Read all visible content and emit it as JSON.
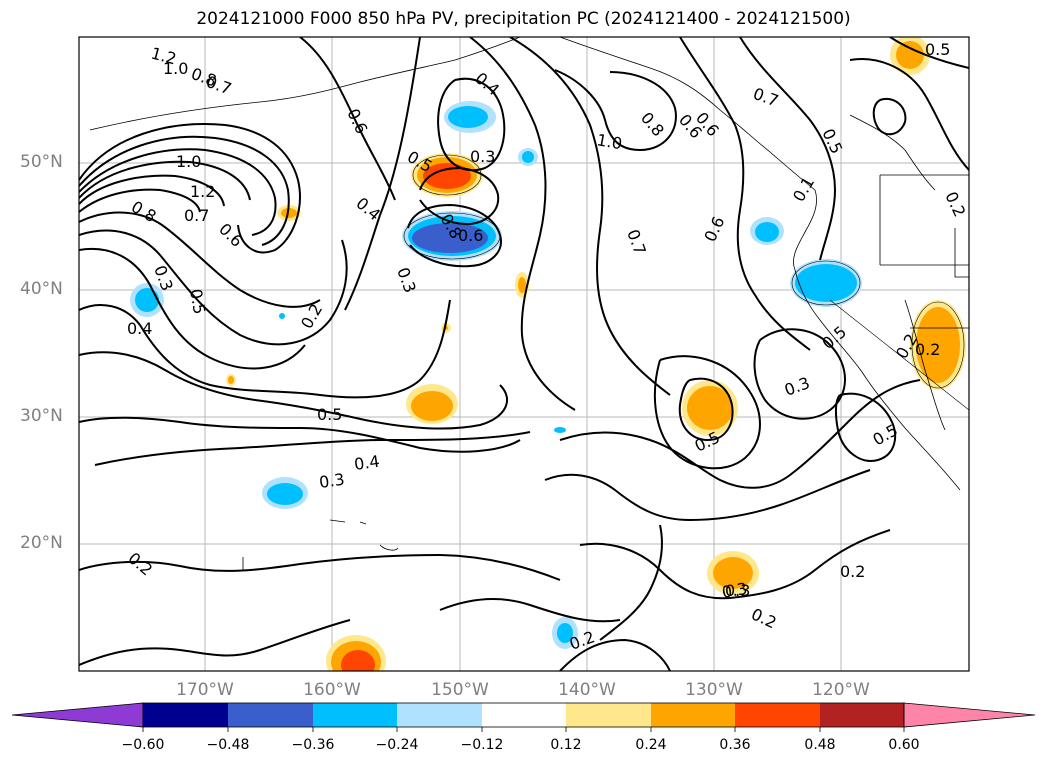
{
  "title": "2024121000 F000 850 hPa PV, precipitation PC (2024121400 - 2024121500)",
  "lat_labels": [
    "50°N",
    "40°N",
    "30°N",
    "20°N"
  ],
  "lon_labels": [
    "170°W",
    "160°W",
    "150°W",
    "140°W",
    "130°W",
    "120°W"
  ],
  "colorbar": {
    "ticks": [
      "−0.60",
      "−0.48",
      "−0.36",
      "−0.24",
      "−0.12",
      "0.12",
      "0.24",
      "0.36",
      "0.48",
      "0.60"
    ],
    "colors": [
      "#8e3bd6",
      "#000090",
      "#3a5fcd",
      "#00bfff",
      "#b0e2ff",
      "#ffffff",
      "#ffe88c",
      "#ffa500",
      "#ff4500",
      "#b22222",
      "#ff85a8"
    ]
  },
  "contour_labels": [
    "1.2",
    "1.0",
    "0.8",
    "0.7",
    "0.6",
    "0.4",
    "0.6",
    "0.5",
    "0.3",
    "1.0",
    "0.8",
    "0.6",
    "0.7",
    "0.5",
    "1.0",
    "1.2",
    "0.8",
    "0.7",
    "0.6",
    "0.4",
    "0.8",
    "0.6",
    "0.7",
    "0.6",
    "0.3",
    "0.3",
    "0.5",
    "0.2",
    "0.4",
    "0.3",
    "0.5",
    "0.1",
    "0.2",
    "0.2",
    "0.5",
    "0.4",
    "0.3",
    "0.3",
    "0.5",
    "0.5",
    "0.2",
    "0.3",
    "0.2",
    "0.2",
    "0.2",
    "0.5",
    "0.2"
  ],
  "color_notes": {
    "negative_anomaly": "blue shades",
    "positive_anomaly": "orange/red shades"
  }
}
